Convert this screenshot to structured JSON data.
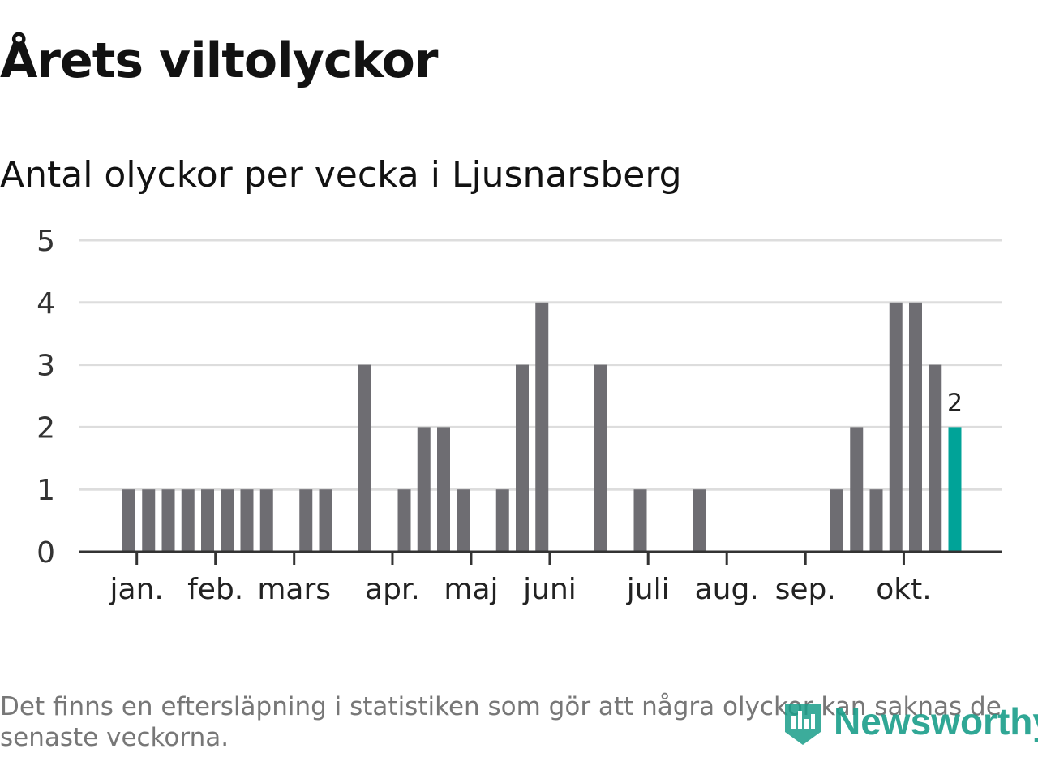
{
  "header": {
    "title": "Årets viltolyckor",
    "subtitle": "Antal olyckor per vecka i Ljusnarsberg"
  },
  "chart_data": {
    "type": "bar",
    "title": "Årets viltolyckor",
    "subtitle": "Antal olyckor per vecka i Ljusnarsberg",
    "xlabel": "",
    "ylabel": "",
    "ylim": [
      0,
      5
    ],
    "y_ticks": [
      0,
      1,
      2,
      3,
      4,
      5
    ],
    "grid": true,
    "weeks": [
      1,
      2,
      3,
      4,
      5,
      6,
      7,
      8,
      9,
      10,
      11,
      12,
      13,
      14,
      15,
      16,
      17,
      18,
      19,
      20,
      21,
      22,
      23,
      24,
      25,
      26,
      27,
      28,
      29,
      30,
      31,
      32,
      33,
      34,
      35,
      36,
      37,
      38,
      39,
      40,
      41,
      42,
      43
    ],
    "values": [
      1,
      1,
      1,
      1,
      1,
      1,
      1,
      1,
      0,
      1,
      1,
      0,
      3,
      0,
      1,
      2,
      2,
      1,
      0,
      1,
      3,
      4,
      0,
      0,
      3,
      0,
      1,
      0,
      0,
      1,
      0,
      0,
      0,
      0,
      0,
      0,
      1,
      2,
      1,
      4,
      4,
      3,
      2
    ],
    "highlight_last": true,
    "highlight_label": "2",
    "month_ticks": [
      {
        "label": "jan.",
        "week": 1.4
      },
      {
        "label": "feb.",
        "week": 5.4
      },
      {
        "label": "mars",
        "week": 9.4
      },
      {
        "label": "apr.",
        "week": 14.4
      },
      {
        "label": "maj",
        "week": 18.4
      },
      {
        "label": "juni",
        "week": 22.4
      },
      {
        "label": "juli",
        "week": 27.4
      },
      {
        "label": "aug.",
        "week": 31.4
      },
      {
        "label": "sep.",
        "week": 35.4
      },
      {
        "label": "okt.",
        "week": 40.4
      }
    ],
    "colors": {
      "bar": "#6e6d72",
      "highlight": "#00a398",
      "grid": "#dddddd",
      "axis": "#333333"
    }
  },
  "footer": {
    "note": "Det finns en eftersläpning i statistiken som gör att några olyckor kan saknas de senaste veckorna.",
    "logo_text": "Newsworthy"
  }
}
